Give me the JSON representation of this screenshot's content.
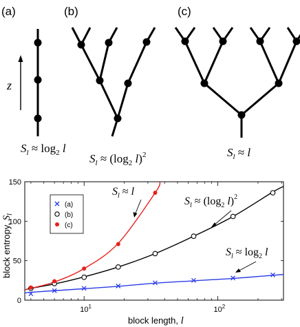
{
  "panels": {
    "a_label": "(a)",
    "b_label": "(b)",
    "c_label": "(c)",
    "z_label": "z",
    "formula_a": "S_l ≈ log_2 l",
    "formula_b": "S_l ≈ (log_2 l)^2",
    "formula_c": "S_l ≈ l"
  },
  "chart_data": {
    "type": "line",
    "xlabel": "block length, l",
    "ylabel": "block entropy, S_l",
    "xscale": "log",
    "xlim": [
      3.6,
      310
    ],
    "ylim": [
      0,
      150
    ],
    "yticks": [
      0,
      50,
      100,
      150
    ],
    "xticks": [
      10,
      100
    ],
    "xtick_labels": [
      "10^1",
      "10^2"
    ],
    "grid": false,
    "legend": {
      "position": "top-left",
      "entries": [
        "(a)",
        "(b)",
        "(c)"
      ]
    },
    "annotations": [
      "S_l ≈ l",
      "S_l ≈ (log_2 l)^2",
      "S_l ≈ log_2 l"
    ],
    "series": [
      {
        "name": "(a)",
        "color": "#2b3ee6",
        "marker": "x",
        "x": [
          4,
          6,
          10,
          18,
          34,
          66,
          130,
          258
        ],
        "y": [
          8,
          12,
          15,
          18,
          22,
          25,
          28,
          32
        ]
      },
      {
        "name": "(b)",
        "color": "#000000",
        "marker": "o",
        "x": [
          4,
          6,
          10,
          18,
          34,
          66,
          130,
          258
        ],
        "y": [
          15,
          21,
          29,
          42,
          59,
          81,
          106,
          136
        ]
      },
      {
        "name": "(c)",
        "color": "#e8201c",
        "marker": "filled-circle",
        "x": [
          4,
          6,
          10,
          18,
          34
        ],
        "y": [
          16,
          24,
          40,
          71,
          136
        ]
      }
    ],
    "curves": [
      {
        "series": "(a)",
        "x": [
          3.6,
          4,
          6,
          10,
          18,
          34,
          66,
          130,
          258,
          310
        ],
        "y": [
          9,
          10,
          12,
          14.5,
          17.5,
          21.5,
          24.5,
          27.5,
          31.5,
          32.5
        ]
      },
      {
        "series": "(b)",
        "x": [
          3.6,
          4,
          6,
          10,
          18,
          34,
          66,
          130,
          258,
          310
        ],
        "y": [
          13,
          15,
          20.5,
          29.5,
          42,
          59,
          81,
          106,
          137,
          144
        ]
      },
      {
        "series": "(c)",
        "x": [
          3.6,
          4,
          6,
          10,
          18,
          34,
          37
        ],
        "y": [
          13,
          15,
          23,
          40,
          72,
          136,
          150
        ]
      }
    ]
  }
}
